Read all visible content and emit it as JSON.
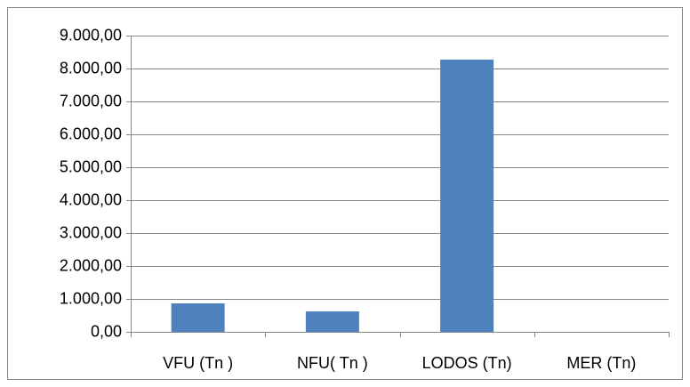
{
  "chart_data": {
    "type": "bar",
    "categories": [
      "VFU (Tn )",
      "NFU( Tn )",
      "LODOS (Tn)",
      "MER (Tn)"
    ],
    "values": [
      865,
      620,
      8270,
      0
    ],
    "color": "#4f81bd",
    "ylim": [
      0,
      9000
    ],
    "yticks": [
      {
        "value": 0,
        "label": "0,00"
      },
      {
        "value": 1000,
        "label": "1.000,00"
      },
      {
        "value": 2000,
        "label": "2.000,00"
      },
      {
        "value": 3000,
        "label": "3.000,00"
      },
      {
        "value": 4000,
        "label": "4.000,00"
      },
      {
        "value": 5000,
        "label": "5.000,00"
      },
      {
        "value": 6000,
        "label": "6.000,00"
      },
      {
        "value": 7000,
        "label": "7.000,00"
      },
      {
        "value": 8000,
        "label": "8.000,00"
      },
      {
        "value": 9000,
        "label": "9.000,00"
      }
    ],
    "grid": true
  }
}
